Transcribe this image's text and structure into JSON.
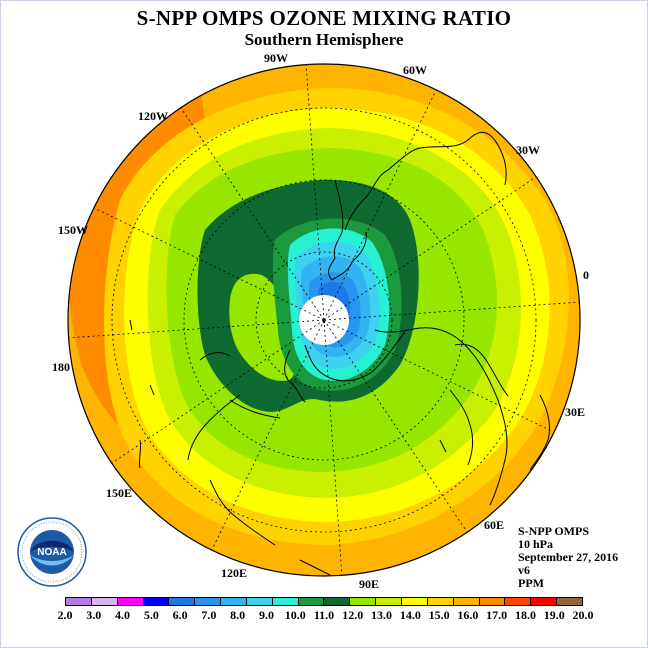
{
  "title": "S-NPP OMPS OZONE MIXING RATIO",
  "subtitle": "Southern Hemisphere",
  "longitude_labels": {
    "w90": "90W",
    "w60": "60W",
    "w30": "30W",
    "e0": "0",
    "e30": "30E",
    "e60": "60E",
    "e90": "90E",
    "e120": "120E",
    "e150": "150E",
    "d180": "180",
    "w150": "150W",
    "w120": "120W"
  },
  "info": {
    "instrument": "S-NPP OMPS",
    "level": "10 hPa",
    "date": "September 27, 2016",
    "version": "v6",
    "units": "PPM"
  },
  "logo": {
    "text": "NOAA",
    "icon": "noaa-logo"
  },
  "colorbar": {
    "ticks": [
      "2.0",
      "3.0",
      "4.0",
      "5.0",
      "6.0",
      "7.0",
      "8.0",
      "9.0",
      "10.0",
      "11.0",
      "12.0",
      "13.0",
      "14.0",
      "15.0",
      "16.0",
      "17.0",
      "18.0",
      "19.0",
      "20.0"
    ],
    "colors": [
      "#b07ae8",
      "#d9b3f0",
      "#ff00ff",
      "#0000ff",
      "#1e78e6",
      "#2896f0",
      "#32b4f0",
      "#3cd2f0",
      "#28f0d2",
      "#1a9a3c",
      "#0f6a32",
      "#96e600",
      "#c8f000",
      "#ffff00",
      "#ffd200",
      "#ffb400",
      "#ff8c00",
      "#ff4600",
      "#ff0000",
      "#96643c"
    ]
  }
}
